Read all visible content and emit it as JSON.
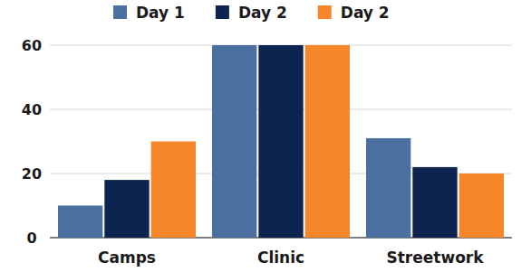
{
  "chart_data": {
    "type": "bar",
    "categories": [
      "Camps",
      "Clinic",
      "Streetwork"
    ],
    "series": [
      {
        "name": "Day 1",
        "color": "#4a6fa0",
        "values": [
          10,
          60,
          31
        ]
      },
      {
        "name": "Day 2",
        "color": "#0d2450",
        "values": [
          18,
          60,
          22
        ]
      },
      {
        "name": "Day 2",
        "color": "#f5862a",
        "values": [
          30,
          60,
          20
        ]
      }
    ],
    "ylim": [
      0,
      60
    ],
    "yticks": [
      0,
      20,
      40,
      60
    ],
    "grid": true,
    "legend": "top"
  }
}
